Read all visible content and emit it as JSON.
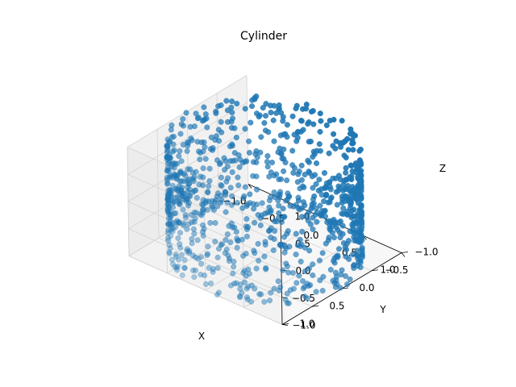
{
  "chart_data": {
    "type": "scatter",
    "projection": "3d",
    "title": "Cylinder",
    "xlabel": "X",
    "ylabel": "Y",
    "zlabel": "Z",
    "xlim": [
      -1.0,
      1.0
    ],
    "ylim": [
      -1.0,
      1.0
    ],
    "zlim": [
      -1.0,
      1.0
    ],
    "x_ticks": [
      "−1.0",
      "−0.5",
      "0.0",
      "0.5",
      "1.0"
    ],
    "y_ticks": [
      "−1.0",
      "−0.5",
      "0.0",
      "0.5",
      "1.0"
    ],
    "z_ticks": [
      "−1.0",
      "−0.5",
      "0.0",
      "0.5",
      "1.0"
    ],
    "grid": true,
    "marker_color": "#1f77b4",
    "series": [
      {
        "shape": "cylinder",
        "radius": 1.0,
        "z_range": [
          -1.0,
          1.0
        ],
        "n_points": 1000
      }
    ]
  }
}
